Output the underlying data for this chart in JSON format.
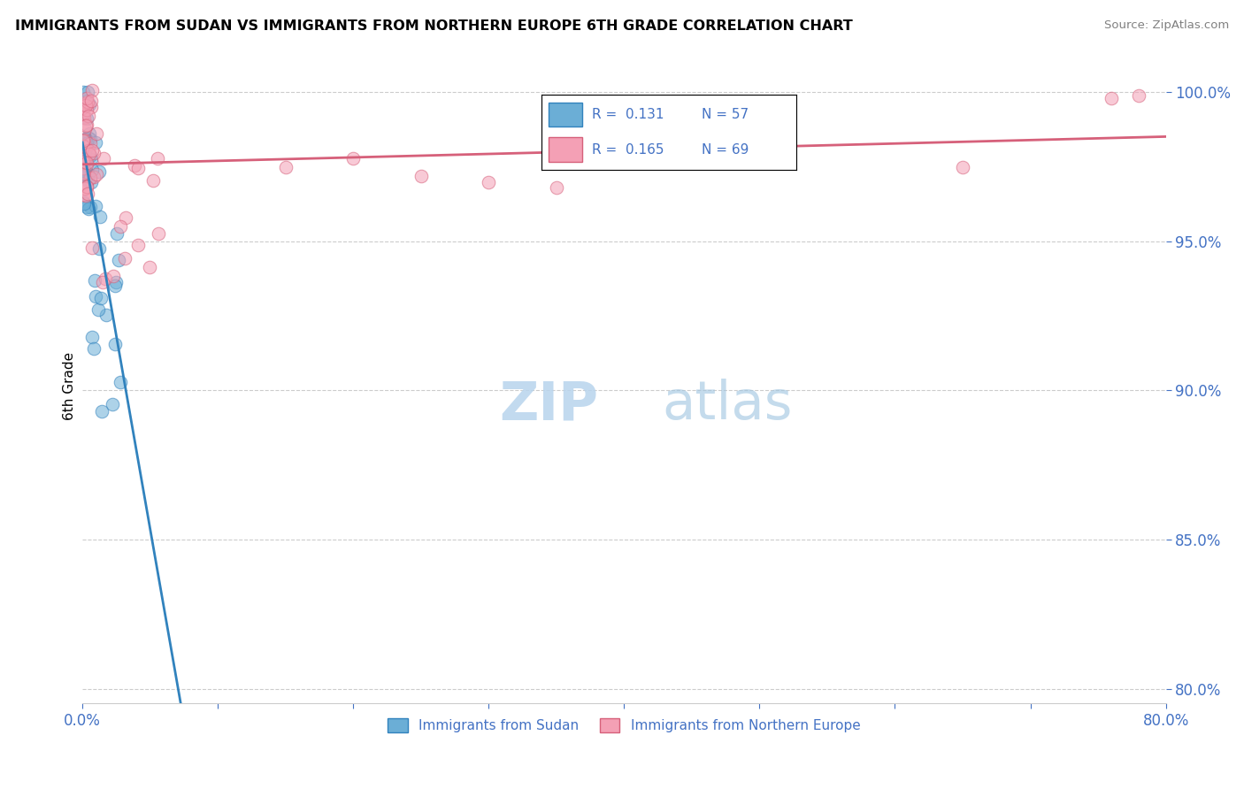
{
  "title": "IMMIGRANTS FROM SUDAN VS IMMIGRANTS FROM NORTHERN EUROPE 6TH GRADE CORRELATION CHART",
  "source": "Source: ZipAtlas.com",
  "ylabel": "6th Grade",
  "xlim": [
    0.0,
    0.8
  ],
  "ylim": [
    0.795,
    1.008
  ],
  "yticks": [
    0.8,
    0.85,
    0.9,
    0.95,
    1.0
  ],
  "ytick_labels": [
    "80.0%",
    "85.0%",
    "90.0%",
    "95.0%",
    "100.0%"
  ],
  "xticks": [
    0.0,
    0.1,
    0.2,
    0.3,
    0.4,
    0.5,
    0.6,
    0.7,
    0.8
  ],
  "xtick_labels": [
    "0.0%",
    "",
    "",
    "",
    "",
    "",
    "",
    "",
    "80.0%"
  ],
  "series1_color": "#6baed6",
  "series1_edge": "#3182bd",
  "series2_color": "#f4a0b5",
  "series2_edge": "#d6607a",
  "series1_label": "Immigrants from Sudan",
  "series2_label": "Immigrants from Northern Europe",
  "R1": 0.131,
  "N1": 57,
  "R2": 0.165,
  "N2": 69,
  "line1_color": "#3182bd",
  "line2_color": "#d6607a",
  "watermark_zip": "ZIP",
  "watermark_atlas": "atlas",
  "background_color": "#ffffff",
  "grid_color": "#cccccc",
  "tick_color": "#4472c4"
}
